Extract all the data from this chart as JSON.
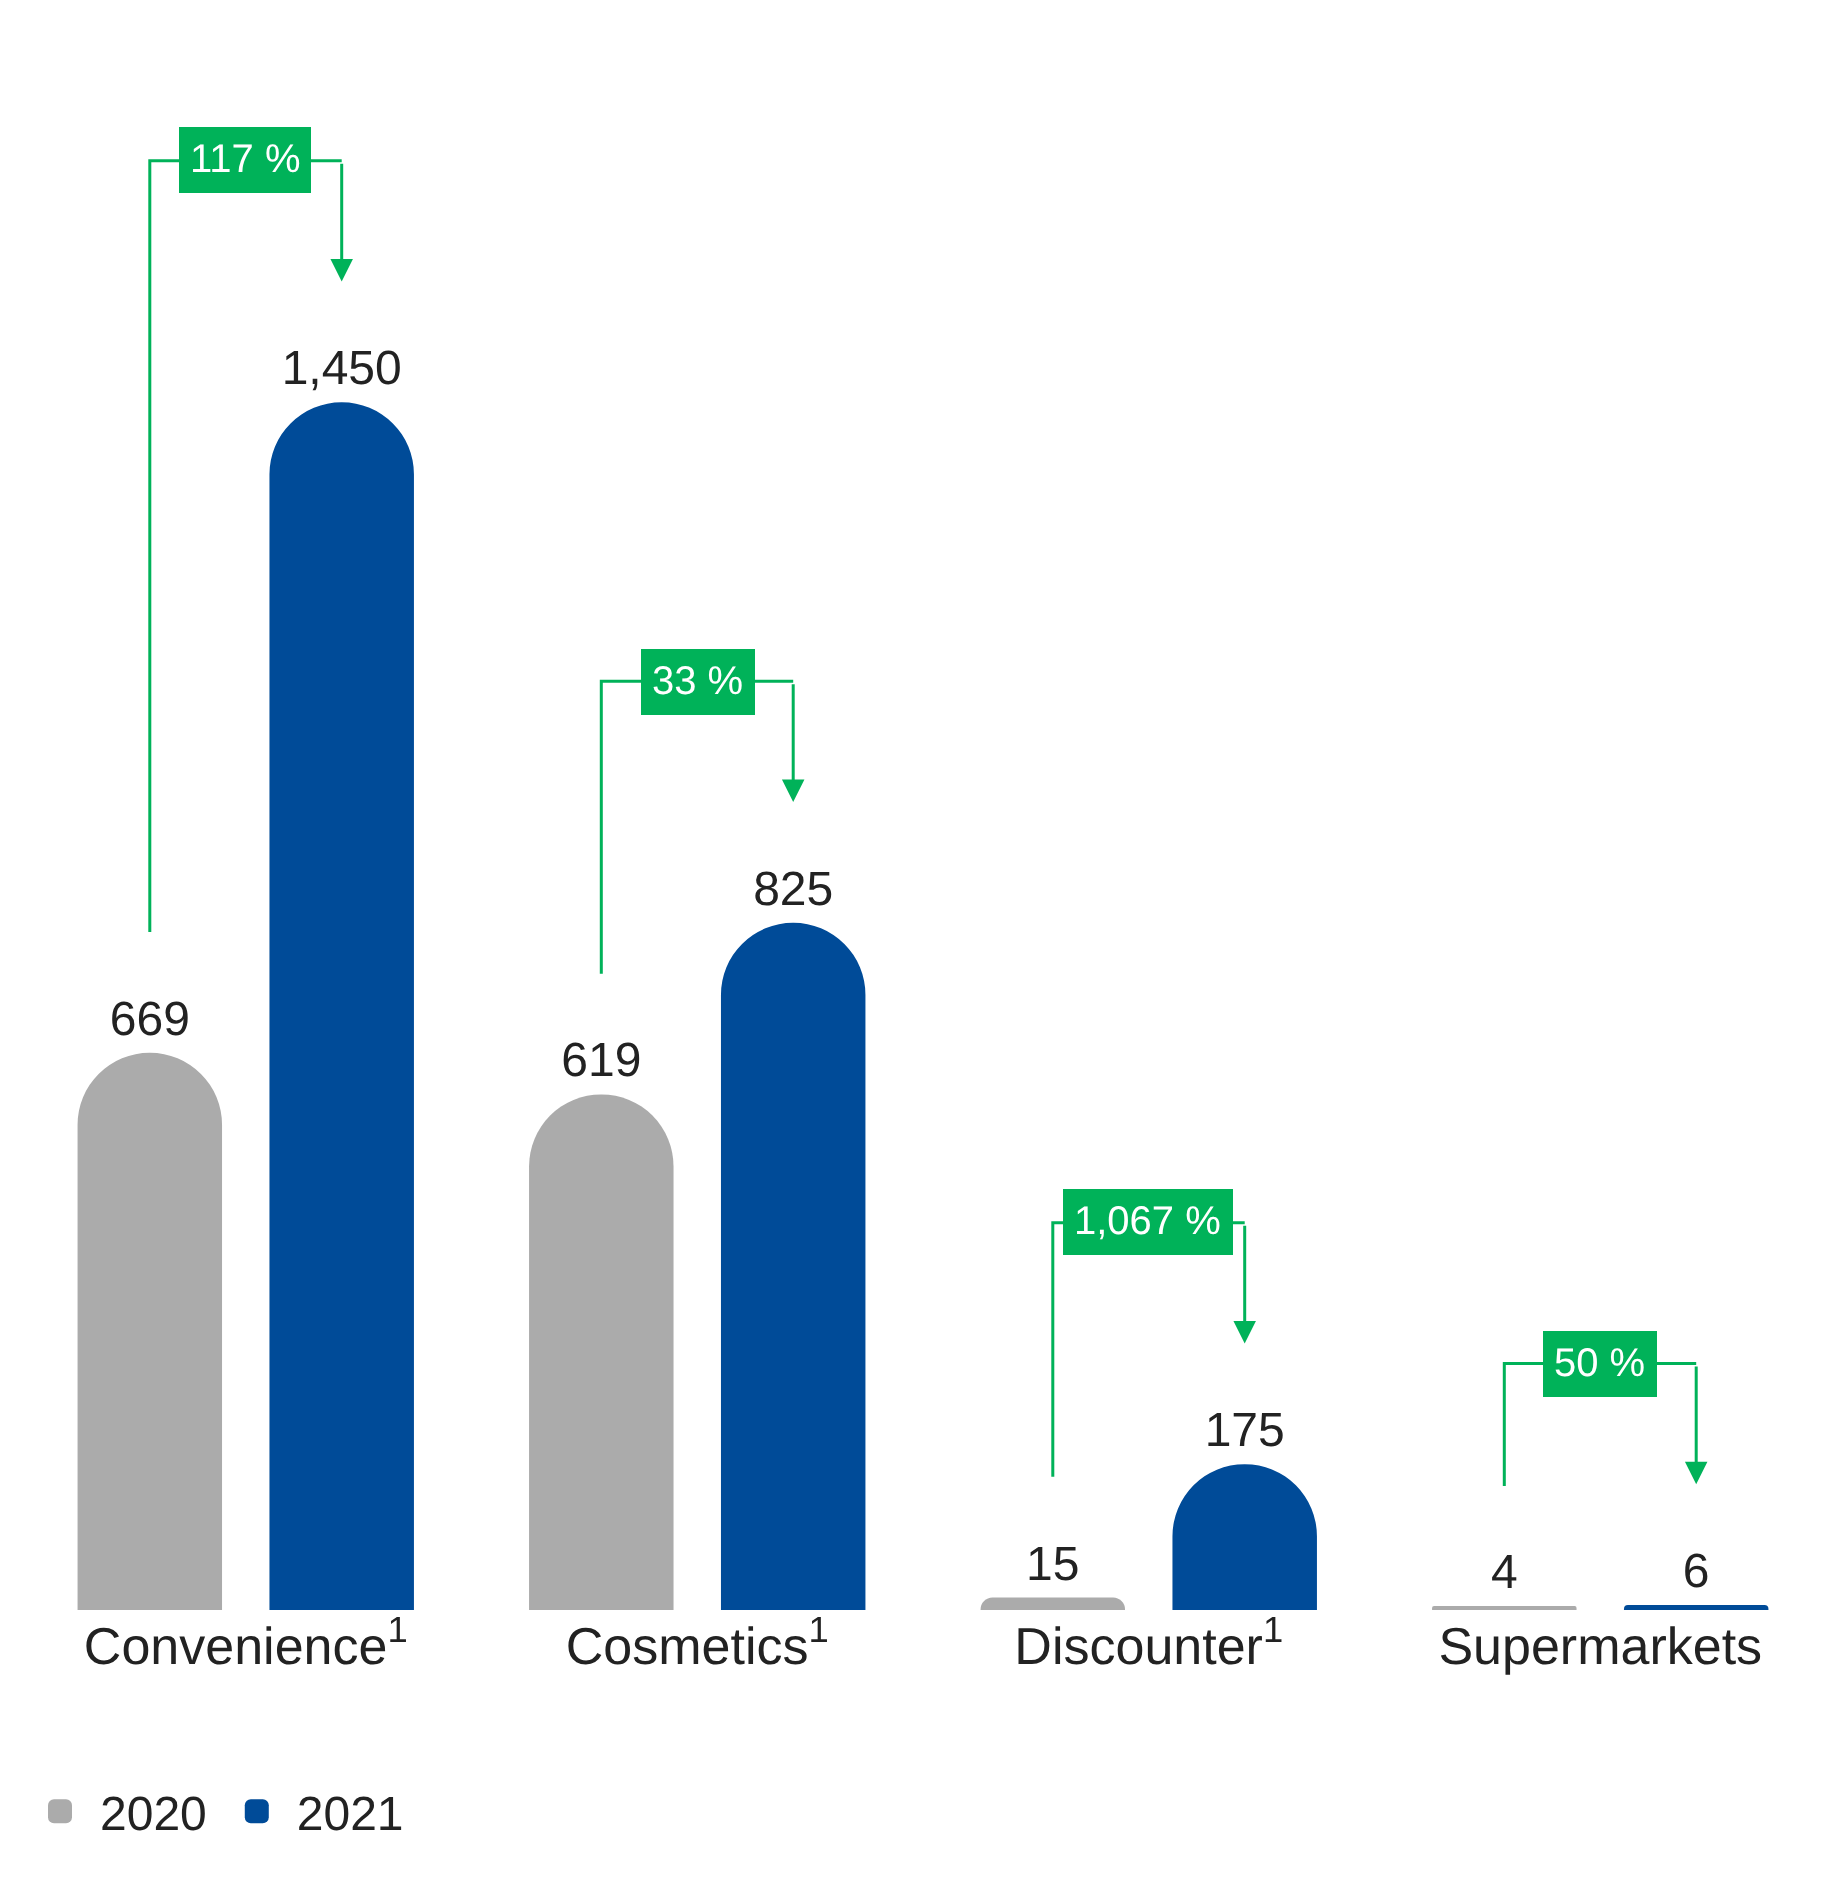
{
  "chart_data": {
    "type": "bar",
    "categories": [
      "Convenience$^{1}$",
      "Cosmetics$^{1}$",
      "Discounter$^{1}$",
      "Supermarkets"
    ],
    "series": [
      {
        "name": "2020",
        "color": "#ababab",
        "values": [
          669,
          619,
          15,
          4
        ]
      },
      {
        "name": "2021",
        "color": "#004b98",
        "values": [
          1450,
          825,
          175,
          6
        ],
        "value_labels": [
          "1,450",
          "825",
          "175",
          "6"
        ]
      }
    ],
    "annotations": [
      "117 %",
      "33 %",
      "1,067 %",
      "50 %"
    ],
    "data_labels": true,
    "legend": "bottom left"
  }
}
